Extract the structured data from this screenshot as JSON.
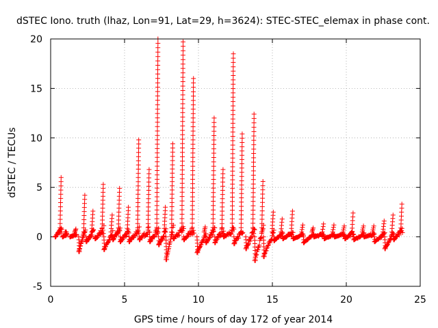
{
  "chart_data": {
    "type": "scatter",
    "title": "dSTEC Iono. truth (lhaz, Lon=91, Lat=29, h=3624): STEC-STEC_elemax in phase cont.",
    "xlabel": "GPS time / hours of day 172 of year 2014",
    "ylabel": "dSTEC  / TECUs",
    "xlim": [
      0,
      25
    ],
    "ylim": [
      -5,
      20
    ],
    "xticks": [
      0,
      5,
      10,
      15,
      20,
      25
    ],
    "yticks": [
      -5,
      0,
      5,
      10,
      15,
      20
    ],
    "grid": true,
    "marker": "+",
    "color": "#ff0000",
    "series": [
      {
        "name": "dSTEC",
        "arcs": [
          {
            "x0": 0.3,
            "x1": 0.75,
            "peak": 6.0,
            "min": 0.0
          },
          {
            "x0": 0.8,
            "x1": 1.1,
            "peak": 0.5,
            "min": 0.0
          },
          {
            "x0": 1.3,
            "x1": 1.75,
            "peak": 0.8,
            "min": 0.0
          },
          {
            "x0": 1.9,
            "x1": 2.35,
            "peak": 4.2,
            "min": -1.5
          },
          {
            "x0": 2.4,
            "x1": 2.9,
            "peak": 2.6,
            "min": -0.5
          },
          {
            "x0": 3.0,
            "x1": 3.6,
            "peak": 5.3,
            "min": -0.2
          },
          {
            "x0": 3.6,
            "x1": 4.2,
            "peak": 2.2,
            "min": -1.3
          },
          {
            "x0": 4.2,
            "x1": 4.7,
            "peak": 4.9,
            "min": -0.3
          },
          {
            "x0": 4.7,
            "x1": 5.3,
            "peak": 3.0,
            "min": -0.5
          },
          {
            "x0": 5.3,
            "x1": 6.0,
            "peak": 9.8,
            "min": -0.5
          },
          {
            "x0": 6.0,
            "x1": 6.7,
            "peak": 6.8,
            "min": -0.3
          },
          {
            "x0": 6.7,
            "x1": 7.3,
            "peak": 20.0,
            "min": -0.5
          },
          {
            "x0": 7.3,
            "x1": 7.8,
            "peak": 3.0,
            "min": -0.8
          },
          {
            "x0": 7.8,
            "x1": 8.3,
            "peak": 9.4,
            "min": -2.3
          },
          {
            "x0": 8.3,
            "x1": 9.0,
            "peak": 19.7,
            "min": -0.2
          },
          {
            "x0": 9.0,
            "x1": 9.7,
            "peak": 16.0,
            "min": -0.3
          },
          {
            "x0": 9.9,
            "x1": 10.5,
            "peak": 1.0,
            "min": -1.6
          },
          {
            "x0": 10.5,
            "x1": 11.1,
            "peak": 12.0,
            "min": -0.6
          },
          {
            "x0": 11.1,
            "x1": 11.7,
            "peak": 6.8,
            "min": -0.6
          },
          {
            "x0": 11.7,
            "x1": 12.4,
            "peak": 18.5,
            "min": 0.0
          },
          {
            "x0": 12.4,
            "x1": 13.0,
            "peak": 10.4,
            "min": -0.7
          },
          {
            "x0": 13.2,
            "x1": 13.8,
            "peak": 12.4,
            "min": -1.2
          },
          {
            "x0": 13.8,
            "x1": 14.4,
            "peak": 5.6,
            "min": -2.4
          },
          {
            "x0": 14.4,
            "x1": 15.1,
            "peak": 2.5,
            "min": -2.0
          },
          {
            "x0": 15.1,
            "x1": 15.7,
            "peak": 1.8,
            "min": -0.4
          },
          {
            "x0": 15.7,
            "x1": 16.4,
            "peak": 2.6,
            "min": -0.2
          },
          {
            "x0": 16.4,
            "x1": 17.1,
            "peak": 1.2,
            "min": -0.2
          },
          {
            "x0": 17.1,
            "x1": 17.8,
            "peak": 0.9,
            "min": -0.6
          },
          {
            "x0": 17.8,
            "x1": 18.5,
            "peak": 1.3,
            "min": 0.0
          },
          {
            "x0": 18.5,
            "x1": 19.2,
            "peak": 1.2,
            "min": -0.2
          },
          {
            "x0": 19.2,
            "x1": 19.9,
            "peak": 1.1,
            "min": 0.0
          },
          {
            "x0": 19.9,
            "x1": 20.5,
            "peak": 2.4,
            "min": -0.2
          },
          {
            "x0": 20.5,
            "x1": 21.2,
            "peak": 1.1,
            "min": -0.3
          },
          {
            "x0": 21.2,
            "x1": 21.9,
            "peak": 1.1,
            "min": 0.0
          },
          {
            "x0": 21.9,
            "x1": 22.6,
            "peak": 1.6,
            "min": -0.5
          },
          {
            "x0": 22.6,
            "x1": 23.2,
            "peak": 2.2,
            "min": -1.2
          },
          {
            "x0": 23.2,
            "x1": 23.8,
            "peak": 3.3,
            "min": -0.3
          }
        ]
      }
    ]
  }
}
